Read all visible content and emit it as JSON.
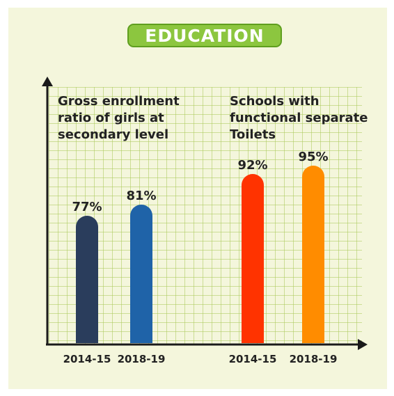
{
  "header": {
    "title": "EDUCATION"
  },
  "chart_data": [
    {
      "type": "bar",
      "title": "Gross enrollment ratio of girls at secondary level",
      "categories": [
        "2014-15",
        "2018-19"
      ],
      "values": [
        77,
        81
      ],
      "labels": [
        "77%",
        "81%"
      ],
      "colors": [
        "#2a3d5c",
        "#1f63a8"
      ],
      "ylim": [
        0,
        100
      ],
      "grid": true
    },
    {
      "type": "bar",
      "title": "Schools with functional separate Toilets",
      "categories": [
        "2014-15",
        "2018-19"
      ],
      "values": [
        92,
        95
      ],
      "labels": [
        "92%",
        "95%"
      ],
      "colors": [
        "#ff3300",
        "#ff8c00"
      ],
      "ylim": [
        0,
        100
      ],
      "grid": true
    }
  ]
}
